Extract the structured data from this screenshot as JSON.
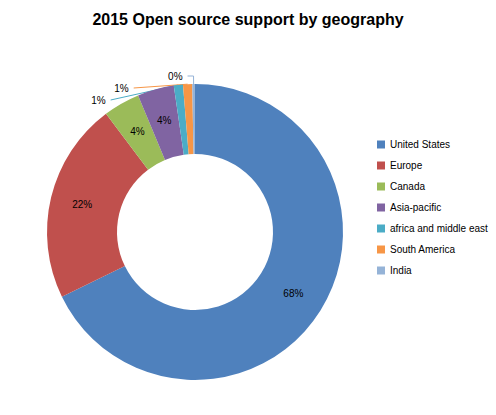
{
  "chart_data": {
    "type": "pie",
    "title": "2015 Open source support by geography",
    "categories": [
      "United States",
      "Europe",
      "Canada",
      "Asia-pacific",
      "africa and middle east",
      "South America",
      "India"
    ],
    "values": [
      68,
      22,
      4,
      4,
      1,
      1,
      0.3
    ],
    "value_labels": [
      "68%",
      "22%",
      "4%",
      "4%",
      "1%",
      "1%",
      "0%"
    ],
    "colors": [
      "#4f81bd",
      "#c0504d",
      "#9bbb59",
      "#8064a2",
      "#4bacc6",
      "#f79646",
      "#95b3d7"
    ],
    "data_labels": true,
    "legend": "right"
  }
}
